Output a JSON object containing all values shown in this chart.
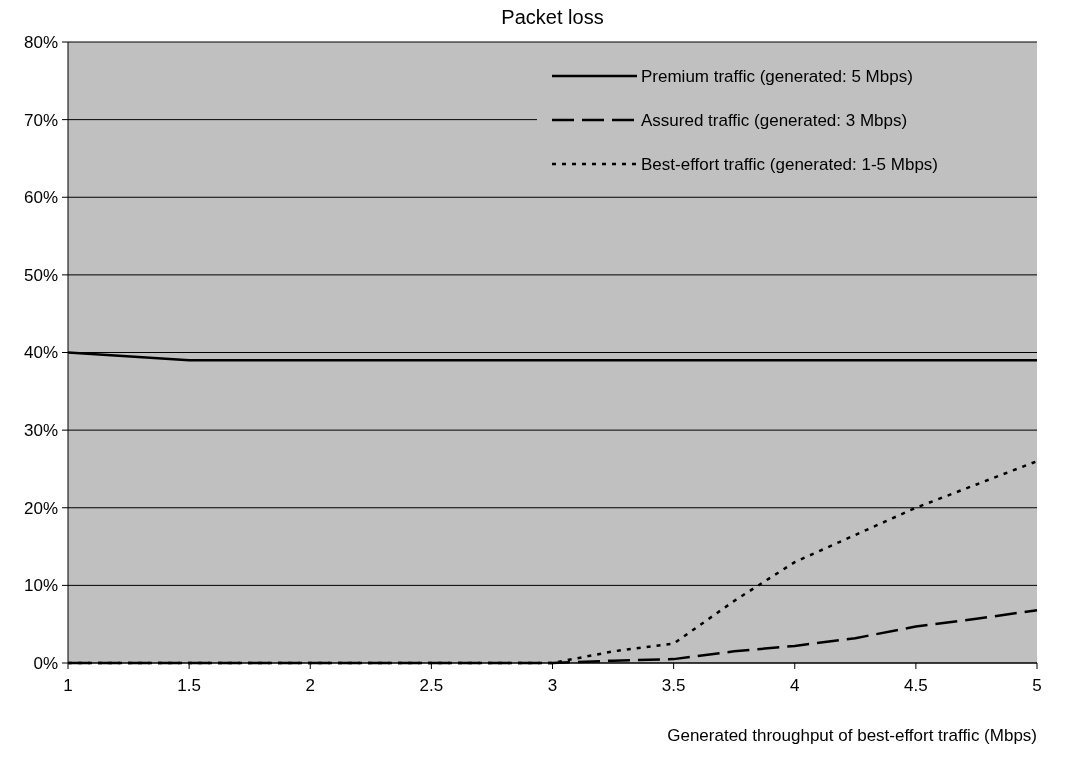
{
  "chart_data": {
    "type": "line",
    "title": "Packet loss",
    "xlabel": "Generated throughput of best-effort traffic (Mbps)",
    "x": [
      1,
      1.5,
      2,
      2.5,
      3,
      3.25,
      3.5,
      3.75,
      4,
      4.25,
      4.5,
      4.75,
      5
    ],
    "series": [
      {
        "name": "Premium traffic (generated: 5 Mbps)",
        "color": "#000000",
        "line_style": "solid",
        "values": [
          40,
          39,
          39,
          39,
          39,
          39,
          39,
          39,
          39,
          39,
          39,
          39,
          39
        ]
      },
      {
        "name": "Assured traffic (generated: 3 Mbps)",
        "color": "#000000",
        "line_style": "dashed",
        "values": [
          0,
          0,
          0,
          0,
          0,
          0.3,
          0.5,
          1.5,
          2.2,
          3.2,
          4.7,
          5.7,
          6.8
        ]
      },
      {
        "name": "Best-effort traffic (generated: 1-5 Mbps)",
        "color": "#000000",
        "line_style": "dotted",
        "values": [
          0,
          0,
          0,
          0,
          0,
          1.5,
          2.5,
          8,
          13,
          16.5,
          20,
          23,
          26
        ]
      }
    ],
    "xlim": [
      1,
      5
    ],
    "xticks": [
      1,
      1.5,
      2,
      2.5,
      3,
      3.5,
      4,
      4.5,
      5
    ],
    "ylim": [
      0,
      80
    ],
    "yticks": [
      {
        "value": 0,
        "label": "0%"
      },
      {
        "value": 10,
        "label": "10%"
      },
      {
        "value": 20,
        "label": "20%"
      },
      {
        "value": 30,
        "label": "30%"
      },
      {
        "value": 40,
        "label": "40%"
      },
      {
        "value": 50,
        "label": "50%"
      },
      {
        "value": 60,
        "label": "60%"
      },
      {
        "value": 70,
        "label": "70%"
      },
      {
        "value": 80,
        "label": "80%"
      }
    ],
    "grid": "y",
    "legend": "top right"
  }
}
